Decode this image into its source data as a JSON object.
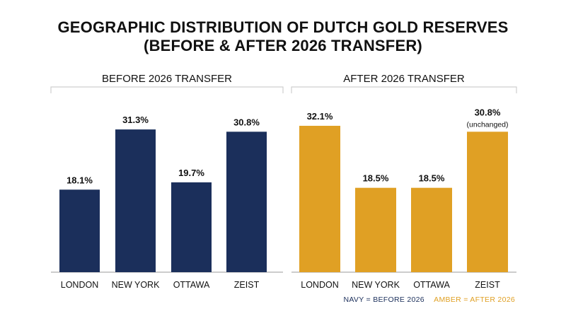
{
  "title": {
    "line1": "GEOGRAPHIC DISTRIBUTION OF DUTCH GOLD RESERVES",
    "line2": "(BEFORE & AFTER 2026 TRANSFER)"
  },
  "legend": {
    "navy_text": "NAVY = BEFORE 2026",
    "amber_text": "AMBER = AFTER 2026"
  },
  "colors": {
    "navy": "#1b2f5b",
    "amber": "#e0a024",
    "bracket": "#cfcfcf",
    "baseline": "#999999"
  },
  "chart_data": [
    {
      "type": "bar",
      "title": "BEFORE 2026 TRANSFER",
      "categories": [
        "LONDON",
        "NEW YORK",
        "OTTAWA",
        "ZEIST"
      ],
      "values": [
        18.1,
        31.3,
        19.7,
        30.8
      ],
      "labels": [
        "18.1%",
        "31.3%",
        "19.7%",
        "30.8%"
      ],
      "annotations": [
        "",
        "",
        "",
        ""
      ],
      "color": "#1b2f5b",
      "xlabel": "",
      "ylabel": "",
      "grid": false
    },
    {
      "type": "bar",
      "title": "AFTER 2026 TRANSFER",
      "categories": [
        "LONDON",
        "NEW YORK",
        "OTTAWA",
        "ZEIST"
      ],
      "values": [
        32.1,
        18.5,
        18.5,
        30.8
      ],
      "labels": [
        "32.1%",
        "18.5%",
        "18.5%",
        "30.8%"
      ],
      "annotations": [
        "",
        "",
        "",
        "(unchanged)"
      ],
      "color": "#e0a024",
      "xlabel": "",
      "ylabel": "",
      "grid": false
    }
  ]
}
